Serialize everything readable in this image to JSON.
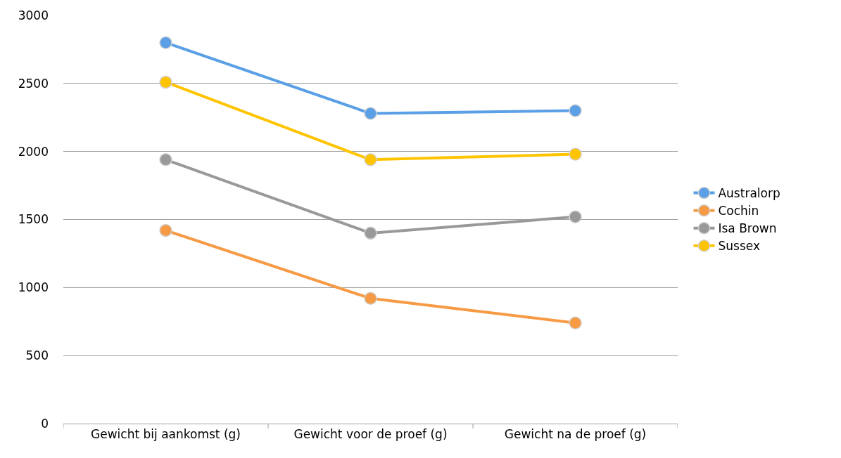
{
  "chart_data": {
    "type": "line",
    "categories": [
      "Gewicht bij aankomst (g)",
      "Gewicht voor de proef (g)",
      "Gewicht na de proef (g)"
    ],
    "series": [
      {
        "name": "Australorp",
        "color": "#5b9fe6",
        "values": [
          2800,
          2280,
          2300
        ]
      },
      {
        "name": "Cochin",
        "color": "#f79a45",
        "values": [
          1420,
          920,
          740
        ]
      },
      {
        "name": "Isa Brown",
        "color": "#999999",
        "values": [
          1940,
          1400,
          1520
        ]
      },
      {
        "name": "Sussex",
        "color": "#ffc400",
        "values": [
          2510,
          1940,
          1980
        ]
      }
    ],
    "ylim": [
      0,
      3000
    ],
    "yticks": [
      0,
      500,
      1000,
      1500,
      2000,
      2500,
      3000
    ],
    "grid": "y",
    "legend": "right",
    "marker": "circle",
    "line_style": "solid"
  }
}
